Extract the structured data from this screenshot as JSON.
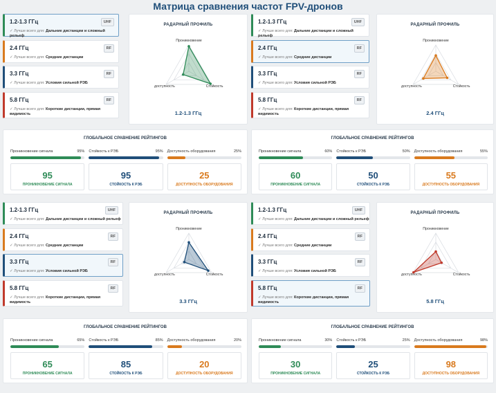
{
  "page": {
    "title": "Матрица сравнения частот FPV-дронов"
  },
  "best_prefix": "✓ Лучше всего для: ",
  "freq": [
    {
      "name": "1.2-1.3 ГГц",
      "badge": "UHF",
      "best": "Дальние дистанции и сложный рельеф",
      "accent": "#2e8b57"
    },
    {
      "name": "2.4 ГГц",
      "badge": "RF",
      "best": "Средние дистанции",
      "accent": "#d97a1e"
    },
    {
      "name": "3.3 ГГц",
      "badge": "RF",
      "best": "Условия сильной РЭБ",
      "accent": "#1f4e79"
    },
    {
      "name": "5.8 ГГц",
      "badge": "RF",
      "best": "Короткие дистанции, прямая видимость",
      "accent": "#c0392b"
    }
  ],
  "radar_labels": {
    "title": "РАДАРНЫЙ ПРОФИЛЬ",
    "axis_top": "Проникновение",
    "axis_right": "Стойкость",
    "axis_left": "доступность"
  },
  "ratings_labels": {
    "title": "ГЛОБАЛЬНОЕ СРАВНЕНИЕ РЕЙТИНГОВ",
    "bar1": "Проникновение сигнала",
    "bar2": "Стойкость к РЭБ",
    "bar3": "Доступность оборудования",
    "box1": "ПРОНИКНОВЕНИЕ СИГНАЛА",
    "box2": "СТОЙКОСТЬ К РЭБ",
    "box3": "ДОСТУПНОСТЬ ОБОРУДОВАНИЯ"
  },
  "panels": [
    {
      "selected": 0,
      "radar_freq": "1.2-1.3 ГГц",
      "color": "#2e8b57",
      "scores": {
        "penetration": 95,
        "resistance": 95,
        "availability": 25
      },
      "pct": [
        "95%",
        "95%",
        "25%"
      ],
      "big": [
        "95",
        "95",
        "25"
      ]
    },
    {
      "selected": 1,
      "radar_freq": "2.4 ГГц",
      "color": "#d97a1e",
      "scores": {
        "penetration": 60,
        "resistance": 50,
        "availability": 55
      },
      "pct": [
        "60%",
        "50%",
        "55%"
      ],
      "big": [
        "60",
        "50",
        "55"
      ]
    },
    {
      "selected": 2,
      "radar_freq": "3.3 ГГц",
      "color": "#1f4e79",
      "scores": {
        "penetration": 65,
        "resistance": 85,
        "availability": 20
      },
      "pct": [
        "65%",
        "85%",
        "20%"
      ],
      "big": [
        "65",
        "85",
        "20"
      ]
    },
    {
      "selected": 3,
      "radar_freq": "5.8 ГГц",
      "color": "#c0392b",
      "scores": {
        "penetration": 30,
        "resistance": 25,
        "availability": 98
      },
      "pct": [
        "30%",
        "25%",
        "98%"
      ],
      "big": [
        "30",
        "25",
        "98"
      ]
    }
  ]
}
